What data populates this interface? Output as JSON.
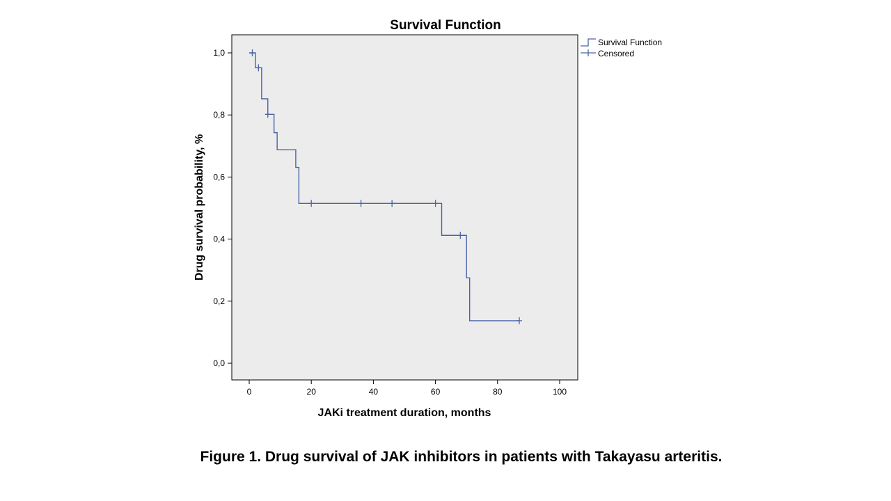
{
  "chart_data": {
    "type": "line",
    "subtype": "kaplan-meier-step",
    "title": "Survival Function",
    "xlabel": "JAKi treatment duration, months",
    "ylabel": "Drug survival probability, %",
    "xlim": [
      0,
      100
    ],
    "ylim": [
      0,
      1
    ],
    "xticks": [
      0,
      20,
      40,
      60,
      80,
      100
    ],
    "xtick_labels": [
      "0",
      "20",
      "40",
      "60",
      "80",
      "100"
    ],
    "yticks": [
      0,
      0.2,
      0.4,
      0.6,
      0.8,
      1.0
    ],
    "ytick_labels": [
      "0,0",
      "0,2",
      "0,4",
      "0,6",
      "0,8",
      "1,0"
    ],
    "grid": false,
    "legend_position": "right-outside-top",
    "plot_background": "#ececec",
    "line_color": "#4a63a8",
    "series": [
      {
        "name": "Survival Function",
        "steps": [
          {
            "x": 0,
            "y": 1.0
          },
          {
            "x": 2,
            "y": 0.952
          },
          {
            "x": 4,
            "y": 0.852
          },
          {
            "x": 6,
            "y": 0.802
          },
          {
            "x": 8,
            "y": 0.743
          },
          {
            "x": 9,
            "y": 0.688
          },
          {
            "x": 15,
            "y": 0.631
          },
          {
            "x": 16,
            "y": 0.515
          },
          {
            "x": 62,
            "y": 0.412
          },
          {
            "x": 70,
            "y": 0.275
          },
          {
            "x": 71,
            "y": 0.137
          }
        ],
        "x_end": 87
      },
      {
        "name": "Censored",
        "points": [
          {
            "x": 1,
            "y": 1.0
          },
          {
            "x": 3,
            "y": 0.952
          },
          {
            "x": 6,
            "y": 0.802
          },
          {
            "x": 20,
            "y": 0.515
          },
          {
            "x": 36,
            "y": 0.515
          },
          {
            "x": 46,
            "y": 0.515
          },
          {
            "x": 60,
            "y": 0.515
          },
          {
            "x": 68,
            "y": 0.412
          },
          {
            "x": 87,
            "y": 0.137
          }
        ]
      }
    ]
  },
  "caption": "Figure 1. Drug survival of JAK inhibitors in patients with Takayasu arteritis."
}
